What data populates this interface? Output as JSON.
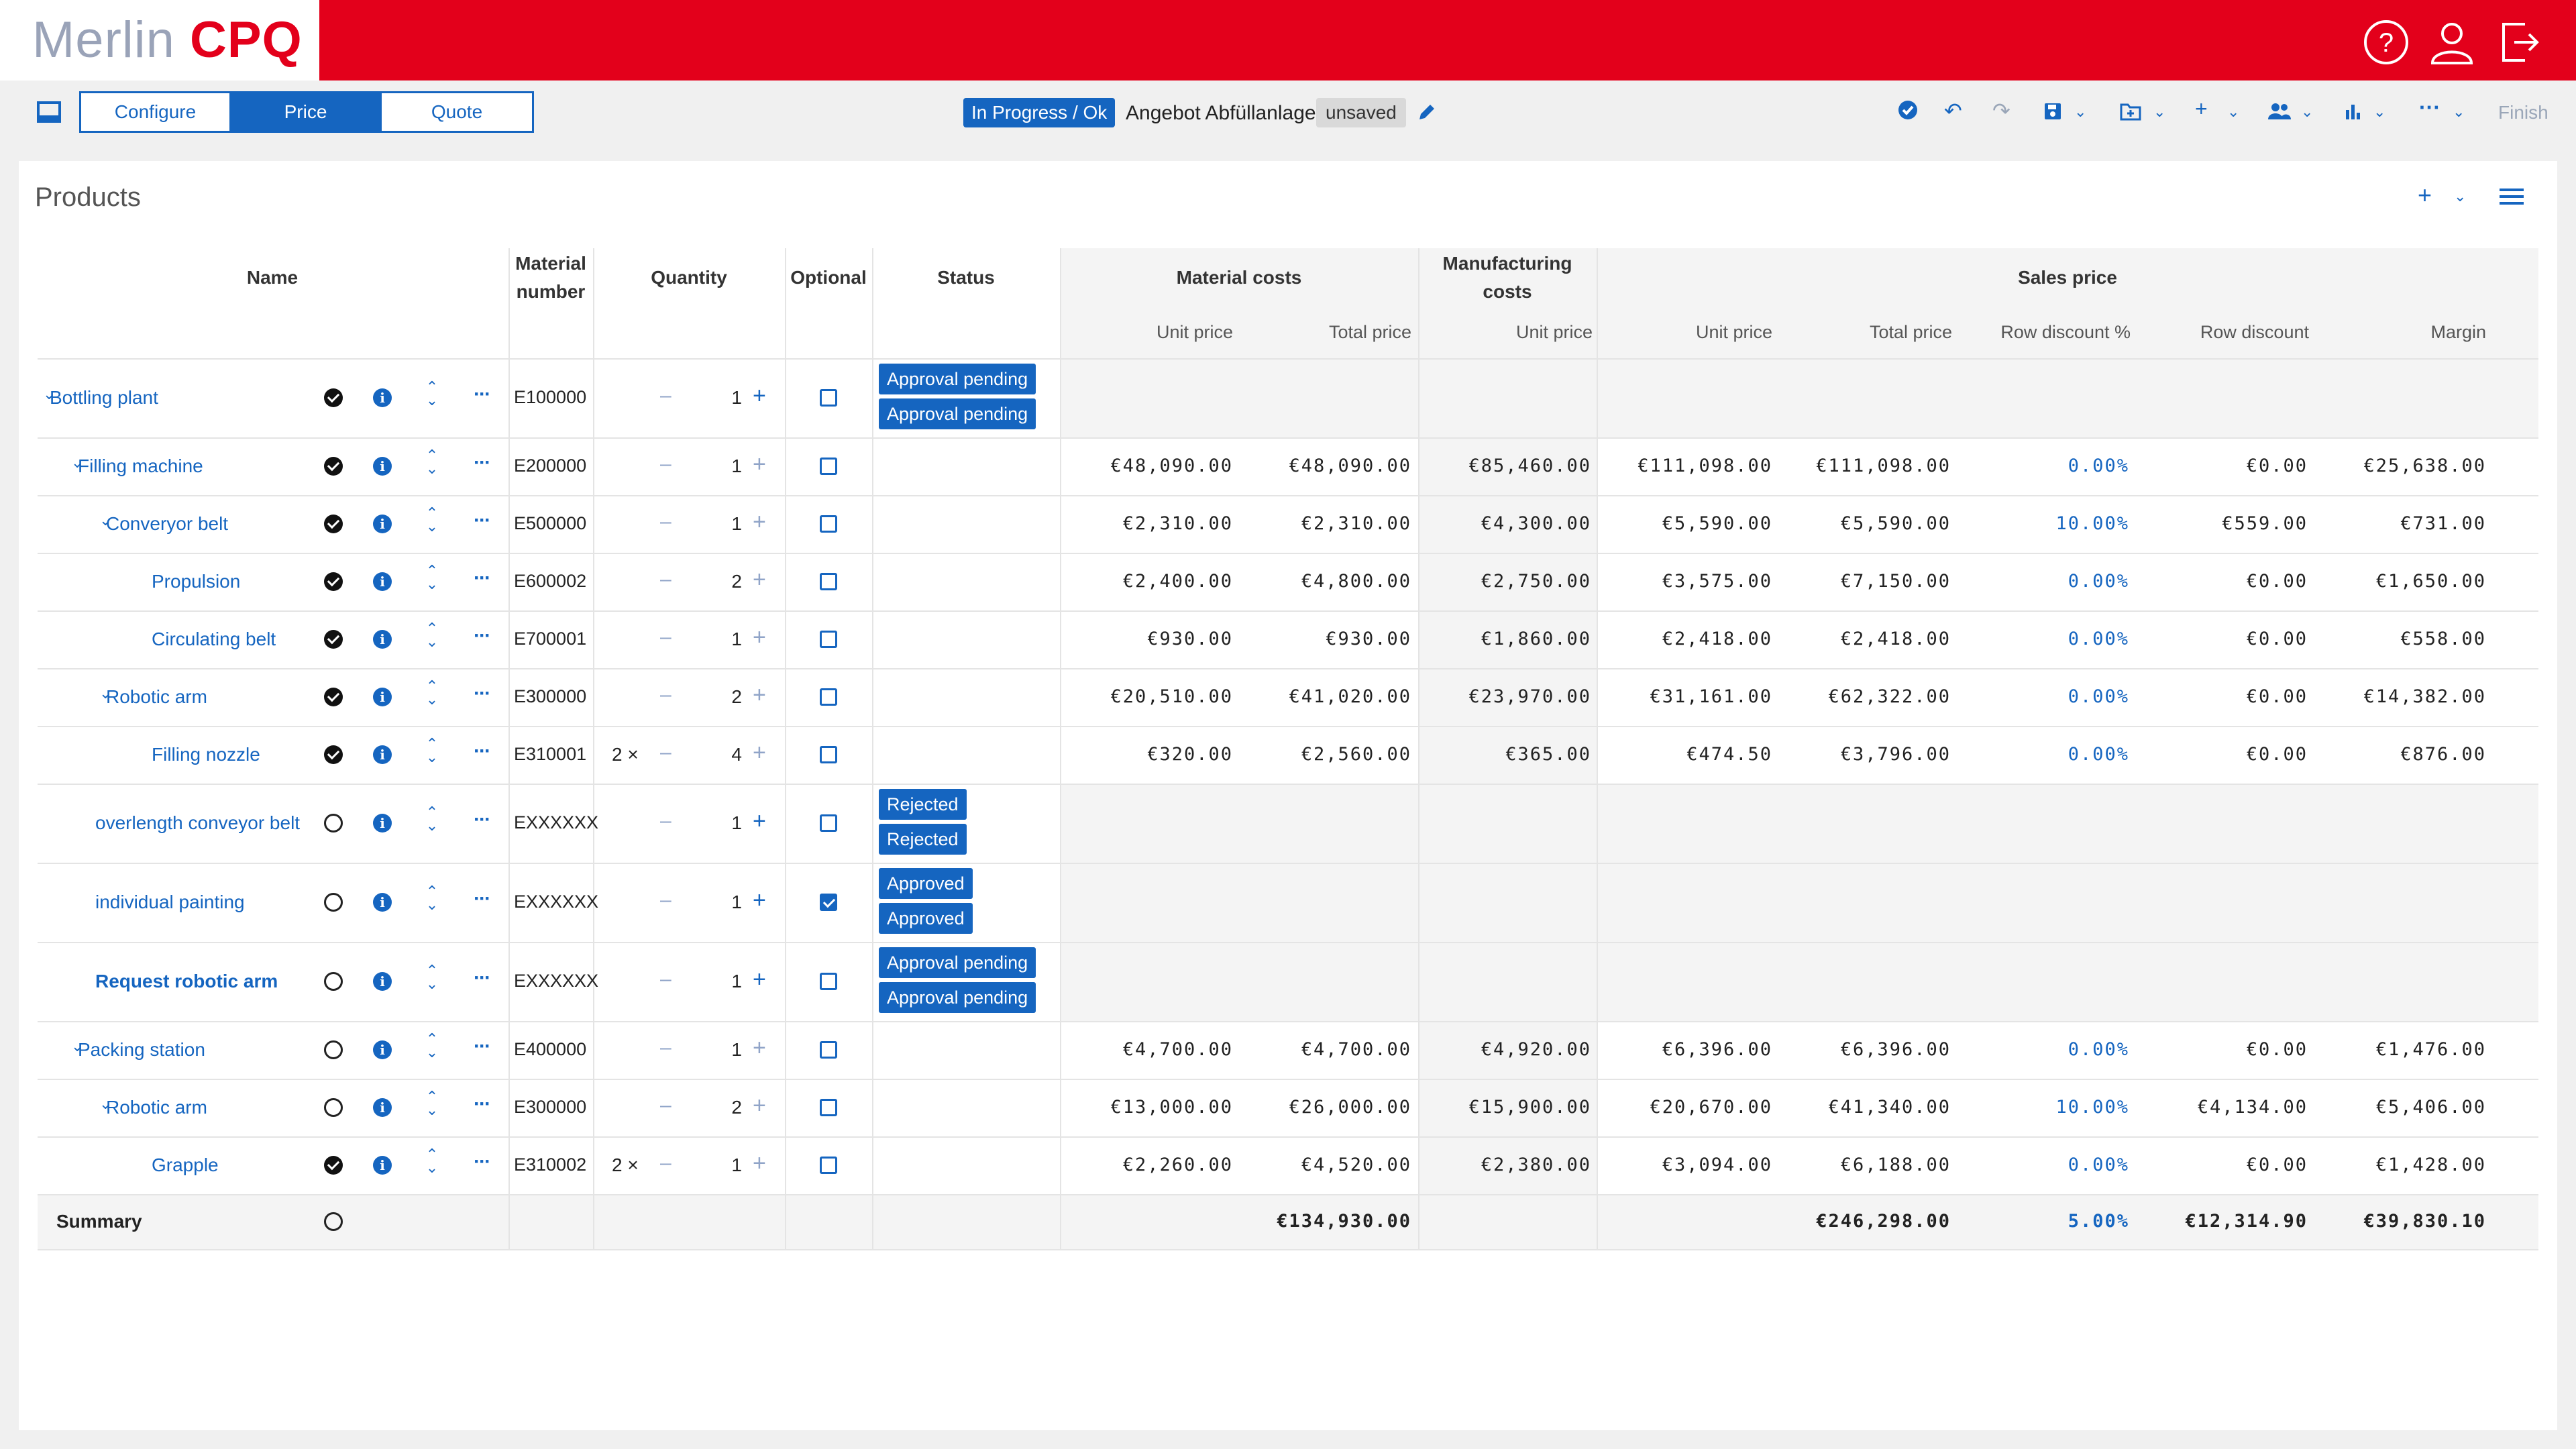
{
  "app": {
    "logo_part1": "Merlin",
    "logo_part2": "CPQ",
    "header_icons": [
      "help-icon",
      "user-icon",
      "logout-icon"
    ],
    "brand_color": "#e3001b",
    "accent_color": "#1565c0"
  },
  "toolbar": {
    "tabs": [
      "Configure",
      "Price",
      "Quote"
    ],
    "active_tab": "Price",
    "status_badge": "In Progress / Ok",
    "document_name": "Angebot Abfüllanlage",
    "save_state": "unsaved",
    "finish_label": "Finish"
  },
  "products": {
    "title": "Products",
    "headers": {
      "name": "Name",
      "material_number": "Material number",
      "quantity": "Quantity",
      "optional": "Optional",
      "status": "Status",
      "material_costs": "Material costs",
      "manufacturing_costs": "Manufacturing costs",
      "sales_price": "Sales price",
      "unit_price": "Unit price",
      "total_price": "Total price",
      "row_discount_pct": "Row discount %",
      "row_discount": "Row discount",
      "margin": "Margin"
    },
    "rows": [
      {
        "name": "Bottling plant",
        "level": 0,
        "expandable": true,
        "bold": false,
        "complete": true,
        "material": "E100000",
        "mult": "",
        "qty": "1",
        "optional": false,
        "status": [
          "Approval pending",
          "Approval pending"
        ],
        "mc_unit": "",
        "mc_total": "",
        "mf_unit": "",
        "sp_unit": "",
        "sp_total": "",
        "disc_pct": "",
        "disc": "",
        "margin": ""
      },
      {
        "name": "Filling machine",
        "level": 1,
        "expandable": true,
        "bold": false,
        "complete": true,
        "material": "E200000",
        "mult": "",
        "qty": "1",
        "optional": false,
        "status": [],
        "mc_unit": "€48,090.00",
        "mc_total": "€48,090.00",
        "mf_unit": "€85,460.00",
        "sp_unit": "€111,098.00",
        "sp_total": "€111,098.00",
        "disc_pct": "0.00%",
        "disc": "€0.00",
        "margin": "€25,638.00"
      },
      {
        "name": "Converyor belt",
        "level": 2,
        "expandable": true,
        "bold": false,
        "complete": true,
        "material": "E500000",
        "mult": "",
        "qty": "1",
        "optional": false,
        "status": [],
        "mc_unit": "€2,310.00",
        "mc_total": "€2,310.00",
        "mf_unit": "€4,300.00",
        "sp_unit": "€5,590.00",
        "sp_total": "€5,590.00",
        "disc_pct": "10.00%",
        "disc": "€559.00",
        "margin": "€731.00"
      },
      {
        "name": "Propulsion",
        "level": 3,
        "expandable": false,
        "bold": false,
        "complete": true,
        "material": "E600002",
        "mult": "",
        "qty": "2",
        "optional": false,
        "status": [],
        "mc_unit": "€2,400.00",
        "mc_total": "€4,800.00",
        "mf_unit": "€2,750.00",
        "sp_unit": "€3,575.00",
        "sp_total": "€7,150.00",
        "disc_pct": "0.00%",
        "disc": "€0.00",
        "margin": "€1,650.00"
      },
      {
        "name": "Circulating belt",
        "level": 3,
        "expandable": false,
        "bold": false,
        "complete": true,
        "material": "E700001",
        "mult": "",
        "qty": "1",
        "optional": false,
        "status": [],
        "mc_unit": "€930.00",
        "mc_total": "€930.00",
        "mf_unit": "€1,860.00",
        "sp_unit": "€2,418.00",
        "sp_total": "€2,418.00",
        "disc_pct": "0.00%",
        "disc": "€0.00",
        "margin": "€558.00"
      },
      {
        "name": "Robotic arm",
        "level": 2,
        "expandable": true,
        "bold": false,
        "complete": true,
        "material": "E300000",
        "mult": "",
        "qty": "2",
        "optional": false,
        "status": [],
        "mc_unit": "€20,510.00",
        "mc_total": "€41,020.00",
        "mf_unit": "€23,970.00",
        "sp_unit": "€31,161.00",
        "sp_total": "€62,322.00",
        "disc_pct": "0.00%",
        "disc": "€0.00",
        "margin": "€14,382.00"
      },
      {
        "name": "Filling nozzle",
        "level": 3,
        "expandable": false,
        "bold": false,
        "complete": true,
        "material": "E310001",
        "mult": "2 ×",
        "qty": "4",
        "optional": false,
        "status": [],
        "mc_unit": "€320.00",
        "mc_total": "€2,560.00",
        "mf_unit": "€365.00",
        "sp_unit": "€474.50",
        "sp_total": "€3,796.00",
        "disc_pct": "0.00%",
        "disc": "€0.00",
        "margin": "€876.00"
      },
      {
        "name": "overlength conveyor belt",
        "level": 1,
        "expandable": false,
        "bold": false,
        "complete": false,
        "material": "EXXXXXX",
        "mult": "",
        "qty": "1",
        "optional": false,
        "status": [
          "Rejected",
          "Rejected"
        ],
        "mc_unit": "",
        "mc_total": "",
        "mf_unit": "",
        "sp_unit": "",
        "sp_total": "",
        "disc_pct": "",
        "disc": "",
        "margin": ""
      },
      {
        "name": "individual painting",
        "level": 1,
        "expandable": false,
        "bold": false,
        "complete": false,
        "material": "EXXXXXX",
        "mult": "",
        "qty": "1",
        "optional": true,
        "status": [
          "Approved",
          "Approved"
        ],
        "mc_unit": "",
        "mc_total": "",
        "mf_unit": "",
        "sp_unit": "",
        "sp_total": "",
        "disc_pct": "",
        "disc": "",
        "margin": ""
      },
      {
        "name": "Request robotic arm",
        "level": 1,
        "expandable": false,
        "bold": true,
        "complete": false,
        "material": "EXXXXXX",
        "mult": "",
        "qty": "1",
        "optional": false,
        "status": [
          "Approval pending",
          "Approval pending"
        ],
        "mc_unit": "",
        "mc_total": "",
        "mf_unit": "",
        "sp_unit": "",
        "sp_total": "",
        "disc_pct": "",
        "disc": "",
        "margin": ""
      },
      {
        "name": "Packing station",
        "level": 1,
        "expandable": true,
        "bold": false,
        "complete": false,
        "material": "E400000",
        "mult": "",
        "qty": "1",
        "optional": false,
        "status": [],
        "mc_unit": "€4,700.00",
        "mc_total": "€4,700.00",
        "mf_unit": "€4,920.00",
        "sp_unit": "€6,396.00",
        "sp_total": "€6,396.00",
        "disc_pct": "0.00%",
        "disc": "€0.00",
        "margin": "€1,476.00"
      },
      {
        "name": "Robotic arm",
        "level": 2,
        "expandable": true,
        "bold": false,
        "complete": false,
        "material": "E300000",
        "mult": "",
        "qty": "2",
        "optional": false,
        "status": [],
        "mc_unit": "€13,000.00",
        "mc_total": "€26,000.00",
        "mf_unit": "€15,900.00",
        "sp_unit": "€20,670.00",
        "sp_total": "€41,340.00",
        "disc_pct": "10.00%",
        "disc": "€4,134.00",
        "margin": "€5,406.00"
      },
      {
        "name": "Grapple",
        "level": 3,
        "expandable": false,
        "bold": false,
        "complete": true,
        "material": "E310002",
        "mult": "2 ×",
        "qty": "1",
        "optional": false,
        "status": [],
        "mc_unit": "€2,260.00",
        "mc_total": "€4,520.00",
        "mf_unit": "€2,380.00",
        "sp_unit": "€3,094.00",
        "sp_total": "€6,188.00",
        "disc_pct": "0.00%",
        "disc": "€0.00",
        "margin": "€1,428.00"
      }
    ],
    "summary": {
      "label": "Summary",
      "mc_total": "€134,930.00",
      "sp_total": "€246,298.00",
      "disc_pct": "5.00%",
      "disc": "€12,314.90",
      "margin": "€39,830.10"
    }
  }
}
